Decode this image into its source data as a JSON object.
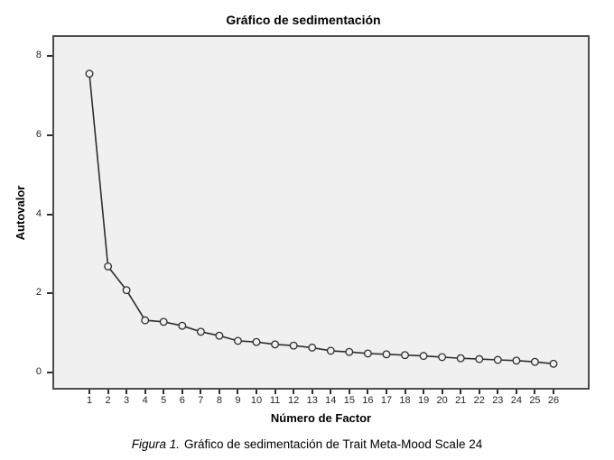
{
  "figure": {
    "caption": {
      "label": "Figura 1.",
      "text": "Gráfico de sedimentación de Trait Meta-Mood Scale 24"
    }
  },
  "chart_data": {
    "type": "line",
    "title": "Gráfico de sedimentación",
    "xlabel": "Número de Factor",
    "ylabel": "Autovalor",
    "x": [
      1,
      2,
      3,
      4,
      5,
      6,
      7,
      8,
      9,
      10,
      11,
      12,
      13,
      14,
      15,
      16,
      17,
      18,
      19,
      20,
      21,
      22,
      23,
      24,
      25,
      26
    ],
    "series": [
      {
        "name": "Autovalor",
        "values": [
          7.55,
          2.68,
          2.08,
          1.32,
          1.28,
          1.18,
          1.03,
          0.93,
          0.8,
          0.77,
          0.71,
          0.68,
          0.63,
          0.55,
          0.52,
          0.48,
          0.46,
          0.44,
          0.42,
          0.39,
          0.36,
          0.34,
          0.32,
          0.3,
          0.27,
          0.22
        ]
      }
    ],
    "yticks": [
      0,
      2,
      4,
      6,
      8
    ],
    "ylim": [
      -0.45,
      8.55
    ],
    "grid": false,
    "legend": "none",
    "marker": "open-circle",
    "line_color": "#2e2e2e",
    "plot_background": "#f0f0f0",
    "frame_color": "#4d4d4d"
  }
}
